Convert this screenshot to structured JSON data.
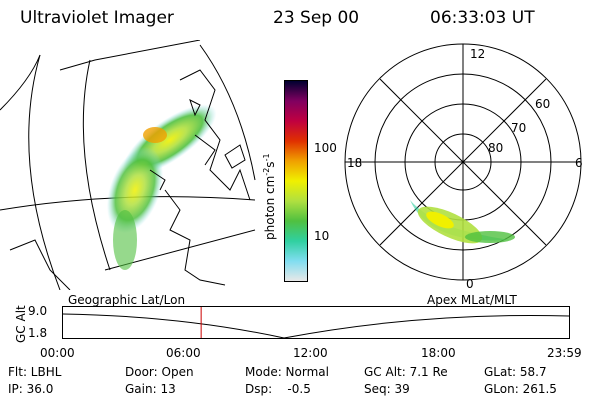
{
  "header": {
    "instrument": "Ultraviolet Imager",
    "date": "23 Sep 00",
    "time": "06:33:03 UT"
  },
  "colorbar": {
    "label": "photon cm",
    "label_sup1": "-2",
    "label_mid": "s",
    "label_sup2": "-1",
    "ticks": [
      "100",
      "10"
    ]
  },
  "polar_plot": {
    "mlt_labels": [
      "12",
      "18",
      "6",
      "0"
    ],
    "lat_labels": [
      "60",
      "70",
      "80"
    ]
  },
  "panel_titles": {
    "left": "Geographic Lat/Lon",
    "right": "Apex MLat/MLT"
  },
  "altitude_strip": {
    "axis_title": "GC Alt",
    "y_ticks": [
      "9.0",
      "1.8"
    ],
    "x_ticks": [
      "00:00",
      "06:00",
      "12:00",
      "18:00",
      "23:59"
    ],
    "current_time_fraction": 0.273
  },
  "status": {
    "row1": {
      "flt": "Flt: LBHL",
      "door": "Door: Open",
      "mode": "Mode: Normal",
      "gcalt": "GC Alt: 7.1 Re",
      "glat": "GLat: 58.7"
    },
    "row2": {
      "ip": "IP: 36.0",
      "gain": "Gain: 13",
      "dsp": "Dsp:    -0.5",
      "seq": "Seq: 39",
      "glon": "GLon: 261.5"
    }
  },
  "colors": {
    "colorbar_stops": [
      "#e8e8e8",
      "#80ddf0",
      "#30d0a0",
      "#50c040",
      "#b0e040",
      "#f0f000",
      "#f0a000",
      "#e03000",
      "#c00040",
      "#800060",
      "#000030"
    ],
    "time_marker": "#cc0000"
  }
}
